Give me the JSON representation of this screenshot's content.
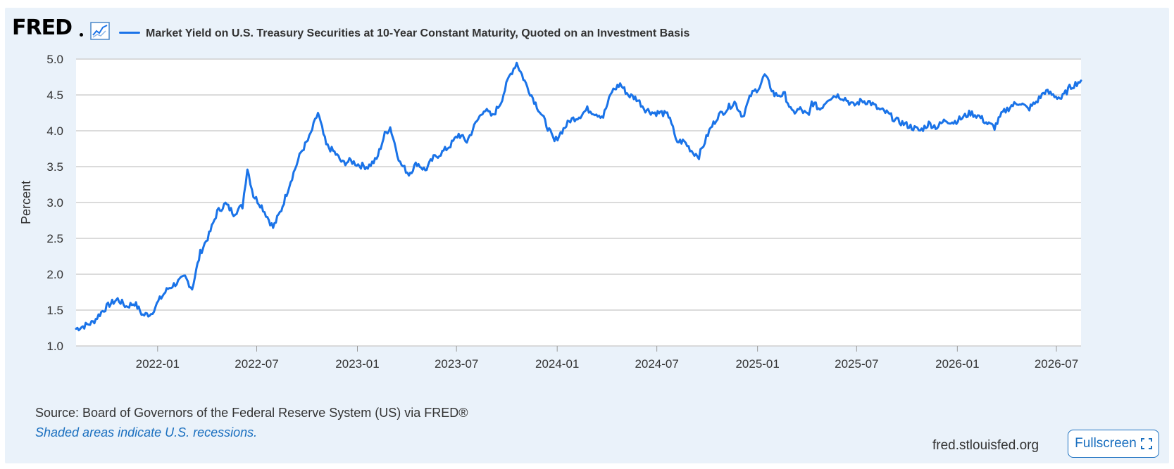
{
  "header": {
    "logo_text": "FRED",
    "series_title": "Market Yield on U.S. Treasury Securities at 10-Year Constant Maturity, Quoted on an Investment Basis"
  },
  "footer": {
    "source": "Source: Board of Governors of the Federal Reserve System (US) via FRED®",
    "note": "Shaded areas indicate U.S. recessions.",
    "site": "fred.stlouisfed.org",
    "fullscreen_label": "Fullscreen"
  },
  "colors": {
    "series": "#1a73e8",
    "grid": "#cfcfcf",
    "panel": "#eaf2fa"
  },
  "icons": {
    "graph": "trend-line-icon",
    "fullscreen": "expand-icon"
  },
  "chart_data": {
    "type": "line",
    "title": "Market Yield on U.S. Treasury Securities at 10-Year Constant Maturity, Quoted on an Investment Basis",
    "ylabel": "Percent",
    "xlabel": "",
    "ylim": [
      1.0,
      5.0
    ],
    "yticks": [
      "1.0",
      "1.5",
      "2.0",
      "2.5",
      "3.0",
      "3.5",
      "4.0",
      "4.5",
      "5.0"
    ],
    "xticks": [
      "2022-01",
      "2022-07",
      "2023-01",
      "2023-07",
      "2024-01",
      "2024-07",
      "2025-01",
      "2025-07",
      "2026-01",
      "2026-07"
    ],
    "xlim": [
      "2021-08-05",
      "2026-08-15"
    ],
    "grid": true,
    "series": [
      {
        "name": "Market Yield on U.S. Treasury Securities at 10-Year Constant Maturity, Quoted on an Investment Basis",
        "x": [
          "2021-08-05",
          "2021-08-20",
          "2021-09-05",
          "2021-09-20",
          "2021-10-05",
          "2021-10-20",
          "2021-11-05",
          "2021-11-20",
          "2021-12-05",
          "2021-12-20",
          "2022-01-05",
          "2022-01-20",
          "2022-02-05",
          "2022-02-20",
          "2022-03-05",
          "2022-03-20",
          "2022-04-05",
          "2022-04-20",
          "2022-05-05",
          "2022-05-20",
          "2022-06-05",
          "2022-06-14",
          "2022-06-25",
          "2022-07-10",
          "2022-07-31",
          "2022-08-15",
          "2022-09-01",
          "2022-09-20",
          "2022-10-05",
          "2022-10-21",
          "2022-11-05",
          "2022-11-20",
          "2022-12-05",
          "2022-12-20",
          "2023-01-05",
          "2023-01-20",
          "2023-02-05",
          "2023-02-20",
          "2023-03-02",
          "2023-03-20",
          "2023-04-05",
          "2023-04-20",
          "2023-05-05",
          "2023-05-20",
          "2023-06-05",
          "2023-06-20",
          "2023-07-05",
          "2023-07-20",
          "2023-08-05",
          "2023-08-20",
          "2023-09-05",
          "2023-09-20",
          "2023-10-05",
          "2023-10-19",
          "2023-11-05",
          "2023-11-20",
          "2023-12-05",
          "2023-12-27",
          "2024-01-10",
          "2024-01-25",
          "2024-02-10",
          "2024-02-25",
          "2024-03-10",
          "2024-03-25",
          "2024-04-10",
          "2024-04-25",
          "2024-05-10",
          "2024-05-25",
          "2024-06-10",
          "2024-06-25",
          "2024-07-10",
          "2024-07-25",
          "2024-08-05",
          "2024-08-20",
          "2024-09-05",
          "2024-09-16",
          "2024-10-05",
          "2024-10-20",
          "2024-11-05",
          "2024-11-20",
          "2024-12-05",
          "2024-12-20",
          "2025-01-05",
          "2025-01-14",
          "2025-02-01",
          "2025-02-20",
          "2025-03-05",
          "2025-03-20",
          "2025-04-05",
          "2025-04-10",
          "2025-04-25",
          "2025-05-10",
          "2025-05-25",
          "2025-06-10",
          "2025-06-25",
          "2025-07-10",
          "2025-07-25",
          "2025-08-10",
          "2025-08-25",
          "2025-09-10",
          "2025-09-25",
          "2025-10-10",
          "2025-10-25",
          "2025-11-10",
          "2025-11-25",
          "2025-12-10",
          "2025-12-25",
          "2026-01-10",
          "2026-01-25",
          "2026-02-10",
          "2026-02-25",
          "2026-03-10",
          "2026-03-25",
          "2026-04-10",
          "2026-04-25",
          "2026-05-10",
          "2026-05-25",
          "2026-06-10",
          "2026-06-25",
          "2026-07-10",
          "2026-07-25",
          "2026-08-10",
          "2026-08-15"
        ],
        "values": [
          1.24,
          1.28,
          1.33,
          1.47,
          1.58,
          1.65,
          1.55,
          1.6,
          1.43,
          1.45,
          1.65,
          1.8,
          1.88,
          1.96,
          1.8,
          2.3,
          2.55,
          2.87,
          2.98,
          2.85,
          2.95,
          3.48,
          3.1,
          2.95,
          2.65,
          2.9,
          3.3,
          3.7,
          3.9,
          4.25,
          3.8,
          3.7,
          3.55,
          3.58,
          3.52,
          3.5,
          3.6,
          3.95,
          4.05,
          3.55,
          3.4,
          3.55,
          3.45,
          3.62,
          3.7,
          3.8,
          3.95,
          3.85,
          4.1,
          4.3,
          4.2,
          4.4,
          4.75,
          4.95,
          4.65,
          4.42,
          4.2,
          3.85,
          4.0,
          4.15,
          4.2,
          4.3,
          4.25,
          4.2,
          4.55,
          4.65,
          4.5,
          4.45,
          4.3,
          4.25,
          4.25,
          4.2,
          3.85,
          3.85,
          3.7,
          3.65,
          4.0,
          4.2,
          4.3,
          4.4,
          4.2,
          4.5,
          4.62,
          4.78,
          4.5,
          4.5,
          4.25,
          4.3,
          4.2,
          4.4,
          4.3,
          4.45,
          4.5,
          4.45,
          4.35,
          4.42,
          4.4,
          4.3,
          4.25,
          4.15,
          4.1,
          4.05,
          4.0,
          4.1,
          4.05,
          4.15,
          4.12,
          4.18,
          4.25,
          4.2,
          4.1,
          4.05,
          4.25,
          4.35,
          4.4,
          4.3,
          4.4,
          4.55,
          4.5,
          4.45,
          4.6,
          4.68,
          4.7
        ]
      }
    ]
  }
}
